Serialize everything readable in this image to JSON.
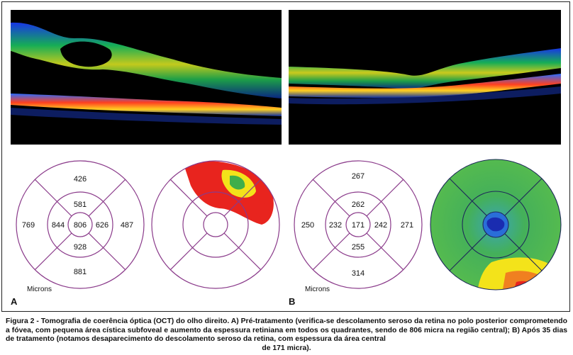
{
  "panels": [
    {
      "letter": "A",
      "units": "Microns",
      "thickness": {
        "outer_top": "426",
        "outer_left": "769",
        "outer_right": "487",
        "outer_bottom": "881",
        "inner_top": "581",
        "inner_left": "844",
        "inner_right": "626",
        "inner_bottom": "928",
        "center": "806"
      }
    },
    {
      "letter": "B",
      "units": "Microns",
      "thickness": {
        "outer_top": "267",
        "outer_left": "250",
        "outer_right": "271",
        "outer_bottom": "314",
        "inner_top": "262",
        "inner_left": "232",
        "inner_right": "242",
        "inner_bottom": "255",
        "center": "171"
      }
    }
  ],
  "colors": {
    "etdrs_lines": "#8a3a8a",
    "scan_bg": "#000000",
    "map_green": "#3fae4a",
    "map_red": "#e8241e",
    "map_yellow": "#f3e31a",
    "map_blue": "#1f5fd0"
  },
  "caption": {
    "text": "Figura 2 - Tomografia de coerência óptica (OCT) do olho direito. A) Pré-tratamento (verifica-se descolamento seroso da retina no polo posterior comprometendo a fóvea, com pequena área cística subfoveal e aumento da espessura retiniana em todos os quadrantes, sendo de 806 micra na região central); B) Após 35 dias de tratamento (notamos desaparecimento do descolamento seroso da retina, com espessura da área central",
    "last_line": "de 171 micra)."
  }
}
